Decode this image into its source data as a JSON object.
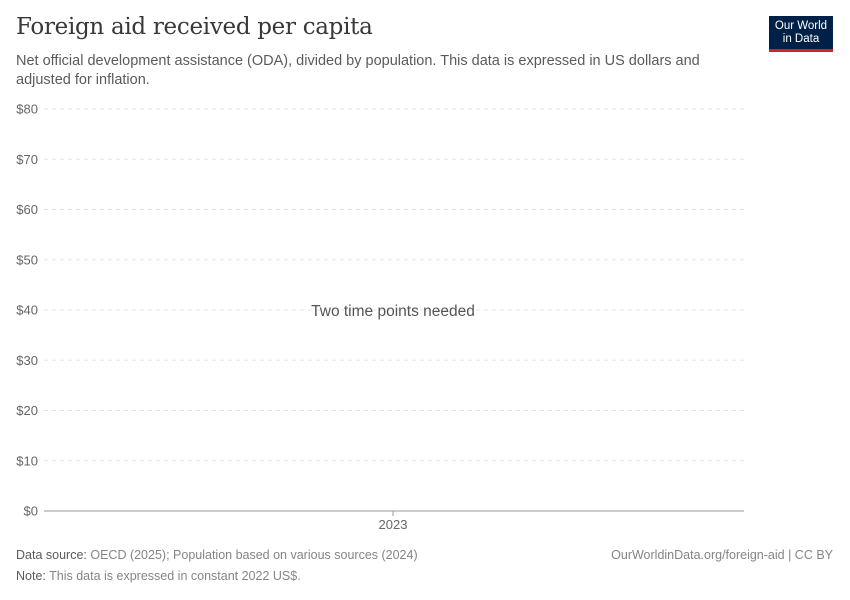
{
  "header": {
    "title": "Foreign aid received per capita",
    "subtitle": "Net official development assistance (ODA), divided by population. This data is expressed in US dollars and adjusted for inflation.",
    "logo_text": "Our World in Data"
  },
  "chart_data": {
    "type": "line",
    "title": "Foreign aid received per capita",
    "xlabel": "",
    "ylabel": "",
    "ylim": [
      0,
      80
    ],
    "y_ticks": [
      0,
      10,
      20,
      30,
      40,
      50,
      60,
      70,
      80
    ],
    "y_tick_labels": [
      "$0",
      "$10",
      "$20",
      "$30",
      "$40",
      "$50",
      "$60",
      "$70",
      "$80"
    ],
    "x_ticks": [
      2023
    ],
    "x_tick_labels": [
      "2023"
    ],
    "grid": "horizontal dashed",
    "series": [],
    "message": "Two time points needed"
  },
  "footer": {
    "source_label": "Data source:",
    "source": "OECD (2025); Population based on various sources (2024)",
    "note_label": "Note:",
    "note": "This data is expressed in constant 2022 US$.",
    "url": "OurWorldinData.org/foreign-aid | CC BY"
  },
  "colors": {
    "logo_bg": "#002147",
    "logo_accent": "#ce261e"
  }
}
